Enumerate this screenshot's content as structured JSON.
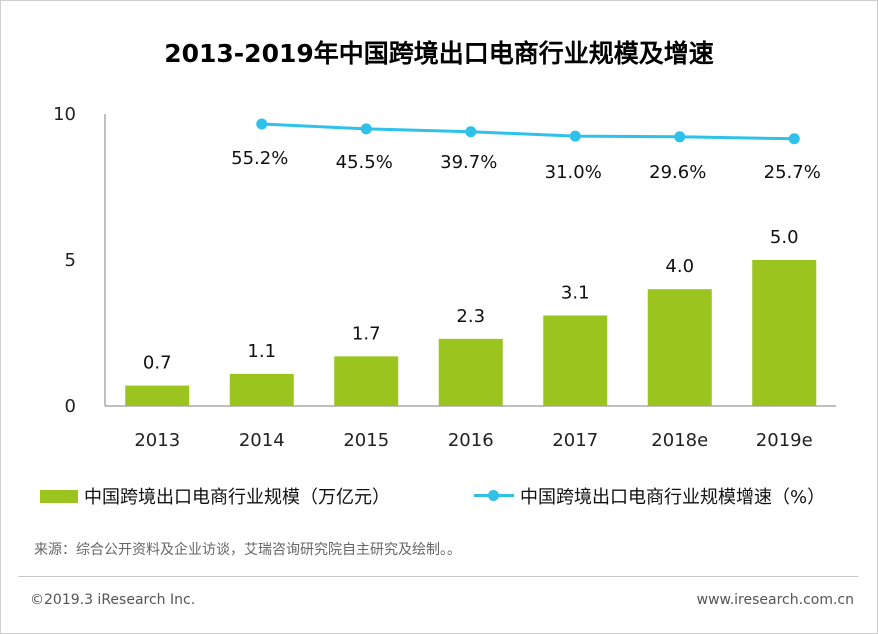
{
  "colors": {
    "bar": "#9cc41e",
    "line": "#2ec2ea",
    "axis": "#7f7f7f"
  },
  "chart_data": {
    "type": "bar",
    "title": "2013-2019年中国跨境出口电商行业规模及增速",
    "categories": [
      "2013",
      "2014",
      "2015",
      "2016",
      "2017",
      "2018e",
      "2019e"
    ],
    "series": [
      {
        "name": "中国跨境出口电商行业规模（万亿元）",
        "type": "bar",
        "values": [
          0.7,
          1.1,
          1.7,
          2.3,
          3.1,
          4.0,
          5.0
        ],
        "labels": [
          "0.7",
          "1.1",
          "1.7",
          "2.3",
          "3.1",
          "4.0",
          "5.0"
        ]
      },
      {
        "name": "中国跨境出口电商行业规模增速（%）",
        "type": "line",
        "values": [
          null,
          55.2,
          45.5,
          39.7,
          31.0,
          29.6,
          25.7
        ],
        "labels": [
          "",
          "55.2%",
          "45.5%",
          "39.7%",
          "31.0%",
          "29.6%",
          "25.7%"
        ]
      }
    ],
    "ylim": [
      0,
      10
    ],
    "yticks": [
      "0",
      "5",
      "10"
    ],
    "legend": "bottom"
  },
  "source": "来源：综合公开资料及企业访谈，艾瑞咨询研究院自主研究及绘制。。",
  "footer": {
    "left": "©2019.3 iResearch Inc.",
    "right": "www.iresearch.com.cn"
  }
}
